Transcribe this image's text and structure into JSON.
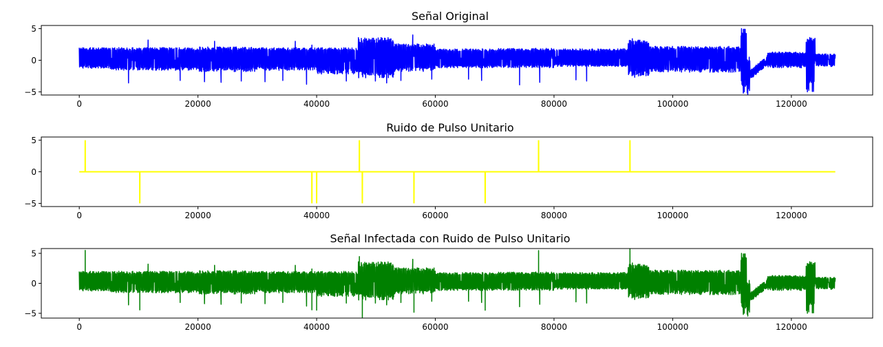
{
  "figure": {
    "background": "#ffffff"
  },
  "chart_data": [
    {
      "type": "line",
      "title": "Señal Original",
      "xlabel": "",
      "ylabel": "",
      "xlim": [
        -6400,
        133700
      ],
      "ylim": [
        -5.5,
        5.5
      ],
      "xticks": [
        0,
        20000,
        40000,
        60000,
        80000,
        100000,
        120000
      ],
      "yticks": [
        5,
        0,
        -5
      ],
      "color": "#0000ff",
      "grid": false,
      "signal": {
        "x_start": 0,
        "x_end": 127400,
        "segments": [
          {
            "x": [
              0,
              5000
            ],
            "min": -1.3,
            "max": 2.0
          },
          {
            "x": [
              5000,
              20000
            ],
            "min": -1.6,
            "max": 2.0
          },
          {
            "x": [
              20000,
              30000
            ],
            "min": -1.8,
            "max": 2.1
          },
          {
            "x": [
              30000,
              40000
            ],
            "min": -1.6,
            "max": 2.0
          },
          {
            "x": [
              40000,
              47000
            ],
            "min": -2.2,
            "max": 2.0
          },
          {
            "x": [
              47000,
              53000
            ],
            "min": -2.8,
            "max": 3.6
          },
          {
            "x": [
              53000,
              60000
            ],
            "min": -1.8,
            "max": 2.6
          },
          {
            "x": [
              60000,
              70000
            ],
            "min": -1.2,
            "max": 1.8
          },
          {
            "x": [
              70000,
              80000
            ],
            "min": -1.2,
            "max": 1.9
          },
          {
            "x": [
              80000,
              92500
            ],
            "min": -1.0,
            "max": 1.8
          },
          {
            "x": [
              92500,
              96000
            ],
            "min": -2.5,
            "max": 3.2
          },
          {
            "x": [
              96000,
              111500
            ],
            "min": -1.9,
            "max": 2.2
          },
          {
            "x": [
              111500,
              113000
            ],
            "min": -5.0,
            "max": 5.0
          },
          {
            "x": [
              113000,
              122500
            ],
            "min": -1.2,
            "max": 1.3
          },
          {
            "x": [
              122500,
              124000
            ],
            "min": -5.0,
            "max": 3.5
          },
          {
            "x": [
              124000,
              127400
            ],
            "min": -1.0,
            "max": 1.0
          }
        ],
        "spikes": [
          {
            "x": 8300,
            "y": -3.6
          },
          {
            "x": 11600,
            "y": 3.2
          },
          {
            "x": 17000,
            "y": -3.2
          },
          {
            "x": 21100,
            "y": -3.4
          },
          {
            "x": 22800,
            "y": 3.0
          },
          {
            "x": 23900,
            "y": -3.5
          },
          {
            "x": 27300,
            "y": -3.3
          },
          {
            "x": 31300,
            "y": -3.4
          },
          {
            "x": 34300,
            "y": -3.2
          },
          {
            "x": 36400,
            "y": 3.0
          },
          {
            "x": 38300,
            "y": -3.8
          },
          {
            "x": 39200,
            "y": 2.4
          },
          {
            "x": 45000,
            "y": -3.3
          },
          {
            "x": 49900,
            "y": -3.3
          },
          {
            "x": 51800,
            "y": -3.6
          },
          {
            "x": 54200,
            "y": -3.2
          },
          {
            "x": 56200,
            "y": 4.0
          },
          {
            "x": 59400,
            "y": -3.0
          },
          {
            "x": 65600,
            "y": -3.0
          },
          {
            "x": 67800,
            "y": -3.2
          },
          {
            "x": 74200,
            "y": -3.9
          },
          {
            "x": 77600,
            "y": -3.5
          },
          {
            "x": 83700,
            "y": -3.1
          },
          {
            "x": 85500,
            "y": -3.3
          },
          {
            "x": 93200,
            "y": 3.4
          },
          {
            "x": 93600,
            "y": -2.7
          },
          {
            "x": 111600,
            "y": 5.0
          },
          {
            "x": 111900,
            "y": -5.2
          },
          {
            "x": 123100,
            "y": 3.6
          },
          {
            "x": 122700,
            "y": -5.0
          }
        ]
      }
    },
    {
      "type": "line",
      "title": "Ruido de Pulso Unitario",
      "xlabel": "",
      "ylabel": "",
      "xlim": [
        -6400,
        133700
      ],
      "ylim": [
        -5.5,
        5.5
      ],
      "xticks": [
        0,
        20000,
        40000,
        60000,
        80000,
        100000,
        120000
      ],
      "yticks": [
        5,
        0,
        -5
      ],
      "color": "#ffff00",
      "grid": false,
      "baseline": 0,
      "x_start": 0,
      "x_end": 127400,
      "pulses": [
        {
          "x": 1000,
          "y": 5
        },
        {
          "x": 10200,
          "y": -5
        },
        {
          "x": 39200,
          "y": -5
        },
        {
          "x": 40000,
          "y": -5
        },
        {
          "x": 47200,
          "y": 5
        },
        {
          "x": 47700,
          "y": -5
        },
        {
          "x": 56400,
          "y": -5
        },
        {
          "x": 68400,
          "y": -5
        },
        {
          "x": 77400,
          "y": 5
        },
        {
          "x": 92800,
          "y": 5
        }
      ]
    },
    {
      "type": "line",
      "title": "Señal Infectada con Ruido de Pulso Unitario",
      "xlabel": "",
      "ylabel": "",
      "xlim": [
        -6400,
        133700
      ],
      "ylim": [
        -5.8,
        5.8
      ],
      "xticks": [
        0,
        20000,
        40000,
        60000,
        80000,
        100000,
        120000
      ],
      "yticks": [
        5,
        0,
        -5
      ],
      "color": "#008000",
      "grid": false,
      "description_of_data": "sum of original signal and unit pulse noise"
    }
  ]
}
